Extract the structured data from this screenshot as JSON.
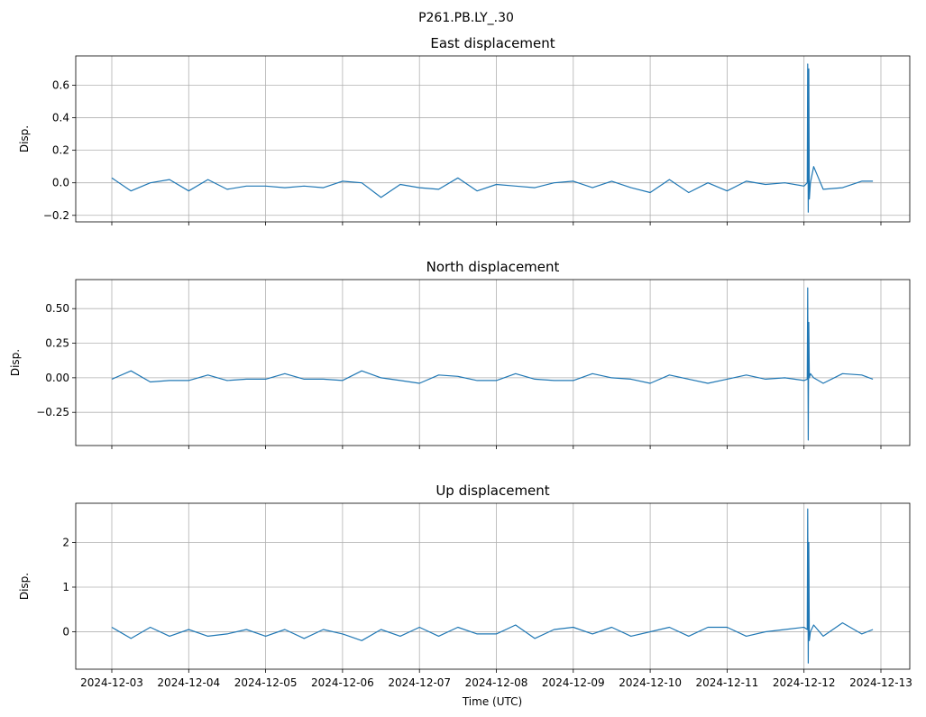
{
  "figure": {
    "suptitle": "P261.PB.LY_.30",
    "xlabel": "Time (UTC)"
  },
  "colors": {
    "line": "#1f77b4",
    "grid": "#b0b0b0",
    "axes": "#000000",
    "background": "#ffffff"
  },
  "x_tick_labels": [
    "2024-12-03",
    "2024-12-04",
    "2024-12-05",
    "2024-12-06",
    "2024-12-07",
    "2024-12-08",
    "2024-12-09",
    "2024-12-10",
    "2024-12-11",
    "2024-12-12",
    "2024-12-13"
  ],
  "chart_data": [
    {
      "type": "line",
      "title": "East displacement",
      "ylabel": "Disp.",
      "xlabel": "",
      "grid": true,
      "xlim": [
        "2024-12-02 12:00",
        "2024-12-13 06:00"
      ],
      "ylim": [
        -0.24,
        0.78
      ],
      "yticks": [
        -0.2,
        0.0,
        0.2,
        0.4,
        0.6
      ],
      "ytick_labels": [
        "−0.2",
        "0.0",
        "0.2",
        "0.4",
        "0.6"
      ],
      "x_dates": [
        "2024-12-03 00:00",
        "2024-12-03 06:00",
        "2024-12-03 12:00",
        "2024-12-03 18:00",
        "2024-12-04 00:00",
        "2024-12-04 06:00",
        "2024-12-04 12:00",
        "2024-12-04 18:00",
        "2024-12-05 00:00",
        "2024-12-05 06:00",
        "2024-12-05 12:00",
        "2024-12-05 18:00",
        "2024-12-06 00:00",
        "2024-12-06 06:00",
        "2024-12-06 12:00",
        "2024-12-06 18:00",
        "2024-12-07 00:00",
        "2024-12-07 06:00",
        "2024-12-07 12:00",
        "2024-12-07 18:00",
        "2024-12-08 00:00",
        "2024-12-08 06:00",
        "2024-12-08 12:00",
        "2024-12-08 18:00",
        "2024-12-09 00:00",
        "2024-12-09 06:00",
        "2024-12-09 12:00",
        "2024-12-09 18:00",
        "2024-12-10 00:00",
        "2024-12-10 06:00",
        "2024-12-10 12:00",
        "2024-12-10 18:00",
        "2024-12-11 00:00",
        "2024-12-11 06:00",
        "2024-12-11 12:00",
        "2024-12-11 18:00",
        "2024-12-12 00:00",
        "2024-12-12 01:00",
        "2024-12-12 01:10",
        "2024-12-12 01:20",
        "2024-12-12 01:30",
        "2024-12-12 01:40",
        "2024-12-12 02:00",
        "2024-12-12 03:00",
        "2024-12-12 06:00",
        "2024-12-12 12:00",
        "2024-12-12 18:00",
        "2024-12-12 21:30"
      ],
      "values": [
        0.03,
        -0.05,
        0.0,
        0.02,
        -0.05,
        0.02,
        -0.04,
        -0.02,
        -0.02,
        -0.03,
        -0.02,
        -0.03,
        0.01,
        0.0,
        -0.09,
        -0.01,
        -0.03,
        -0.04,
        0.03,
        -0.05,
        -0.01,
        -0.02,
        -0.03,
        0.0,
        0.01,
        -0.03,
        0.01,
        -0.03,
        -0.06,
        0.02,
        -0.06,
        0.0,
        -0.05,
        0.01,
        -0.01,
        0.0,
        -0.02,
        0.0,
        0.73,
        -0.18,
        0.7,
        -0.1,
        0.0,
        0.1,
        -0.04,
        -0.03,
        0.01,
        0.01
      ]
    },
    {
      "type": "line",
      "title": "North displacement",
      "ylabel": "Disp.",
      "xlabel": "",
      "grid": true,
      "xlim": [
        "2024-12-02 12:00",
        "2024-12-13 06:00"
      ],
      "ylim": [
        -0.49,
        0.71
      ],
      "yticks": [
        -0.25,
        0.0,
        0.25,
        0.5
      ],
      "ytick_labels": [
        "−0.25",
        "0.00",
        "0.25",
        "0.50"
      ],
      "x_dates": [
        "2024-12-03 00:00",
        "2024-12-03 06:00",
        "2024-12-03 12:00",
        "2024-12-03 18:00",
        "2024-12-04 00:00",
        "2024-12-04 06:00",
        "2024-12-04 12:00",
        "2024-12-04 18:00",
        "2024-12-05 00:00",
        "2024-12-05 06:00",
        "2024-12-05 12:00",
        "2024-12-05 18:00",
        "2024-12-06 00:00",
        "2024-12-06 06:00",
        "2024-12-06 12:00",
        "2024-12-06 18:00",
        "2024-12-07 00:00",
        "2024-12-07 06:00",
        "2024-12-07 12:00",
        "2024-12-07 18:00",
        "2024-12-08 00:00",
        "2024-12-08 06:00",
        "2024-12-08 12:00",
        "2024-12-08 18:00",
        "2024-12-09 00:00",
        "2024-12-09 06:00",
        "2024-12-09 12:00",
        "2024-12-09 18:00",
        "2024-12-10 00:00",
        "2024-12-10 06:00",
        "2024-12-10 12:00",
        "2024-12-10 18:00",
        "2024-12-11 00:00",
        "2024-12-11 06:00",
        "2024-12-11 12:00",
        "2024-12-11 18:00",
        "2024-12-12 00:00",
        "2024-12-12 01:00",
        "2024-12-12 01:10",
        "2024-12-12 01:20",
        "2024-12-12 01:30",
        "2024-12-12 01:40",
        "2024-12-12 02:00",
        "2024-12-12 03:00",
        "2024-12-12 06:00",
        "2024-12-12 12:00",
        "2024-12-12 18:00",
        "2024-12-12 21:30"
      ],
      "values": [
        -0.01,
        0.05,
        -0.03,
        -0.02,
        -0.02,
        0.02,
        -0.02,
        -0.01,
        -0.01,
        0.03,
        -0.01,
        -0.01,
        -0.02,
        0.05,
        0.0,
        -0.02,
        -0.04,
        0.02,
        0.01,
        -0.02,
        -0.02,
        0.03,
        -0.01,
        -0.02,
        -0.02,
        0.03,
        0.0,
        -0.01,
        -0.04,
        0.02,
        -0.01,
        -0.04,
        -0.01,
        0.02,
        -0.01,
        0.0,
        -0.02,
        -0.01,
        0.65,
        -0.45,
        0.4,
        0.0,
        0.03,
        0.0,
        -0.04,
        0.03,
        0.02,
        -0.01
      ]
    },
    {
      "type": "line",
      "title": "Up displacement",
      "ylabel": "Disp.",
      "xlabel": "Time (UTC)",
      "grid": true,
      "xlim": [
        "2024-12-02 12:00",
        "2024-12-13 06:00"
      ],
      "ylim": [
        -0.84,
        2.88
      ],
      "yticks": [
        0,
        1,
        2
      ],
      "ytick_labels": [
        "0",
        "1",
        "2"
      ],
      "x_dates": [
        "2024-12-03 00:00",
        "2024-12-03 06:00",
        "2024-12-03 12:00",
        "2024-12-03 18:00",
        "2024-12-04 00:00",
        "2024-12-04 06:00",
        "2024-12-04 12:00",
        "2024-12-04 18:00",
        "2024-12-05 00:00",
        "2024-12-05 06:00",
        "2024-12-05 12:00",
        "2024-12-05 18:00",
        "2024-12-06 00:00",
        "2024-12-06 06:00",
        "2024-12-06 12:00",
        "2024-12-06 18:00",
        "2024-12-07 00:00",
        "2024-12-07 06:00",
        "2024-12-07 12:00",
        "2024-12-07 18:00",
        "2024-12-08 00:00",
        "2024-12-08 06:00",
        "2024-12-08 12:00",
        "2024-12-08 18:00",
        "2024-12-09 00:00",
        "2024-12-09 06:00",
        "2024-12-09 12:00",
        "2024-12-09 18:00",
        "2024-12-10 00:00",
        "2024-12-10 06:00",
        "2024-12-10 12:00",
        "2024-12-10 18:00",
        "2024-12-11 00:00",
        "2024-12-11 06:00",
        "2024-12-11 12:00",
        "2024-12-11 18:00",
        "2024-12-12 00:00",
        "2024-12-12 01:00",
        "2024-12-12 01:10",
        "2024-12-12 01:20",
        "2024-12-12 01:30",
        "2024-12-12 01:40",
        "2024-12-12 02:00",
        "2024-12-12 03:00",
        "2024-12-12 06:00",
        "2024-12-12 12:00",
        "2024-12-12 18:00",
        "2024-12-12 21:30"
      ],
      "values": [
        0.1,
        -0.15,
        0.1,
        -0.1,
        0.05,
        -0.1,
        -0.05,
        0.05,
        -0.1,
        0.05,
        -0.15,
        0.05,
        -0.05,
        -0.2,
        0.05,
        -0.1,
        0.1,
        -0.1,
        0.1,
        -0.05,
        -0.05,
        0.15,
        -0.15,
        0.05,
        0.1,
        -0.05,
        0.1,
        -0.1,
        0.0,
        0.1,
        -0.1,
        0.1,
        0.1,
        -0.1,
        0.0,
        0.05,
        0.1,
        0.05,
        2.75,
        -0.7,
        2.0,
        -0.2,
        0.0,
        0.15,
        -0.1,
        0.2,
        -0.05,
        0.05
      ]
    }
  ]
}
